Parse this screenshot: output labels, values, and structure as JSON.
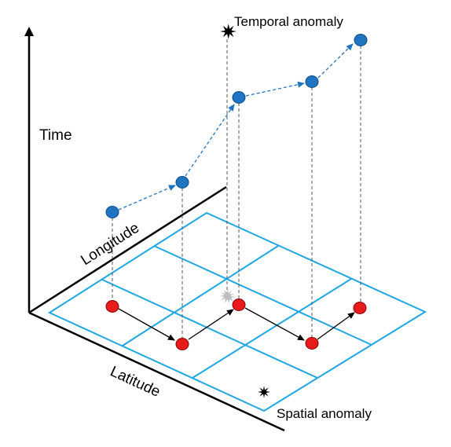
{
  "labels": {
    "time": "Time",
    "longitude": "Longitude",
    "latitude": "Latitude",
    "temporal_anomaly": "Temporal anomaly",
    "spatial_anomaly": "Spatial anomaly"
  },
  "colors": {
    "grid": "#1ea7e4",
    "spatial_point": "#e81b1b",
    "temporal_point": "#1f74c2",
    "trajectory_temporal": "#1f74c2",
    "trajectory_spatial": "#000000",
    "axis": "#000000",
    "drop_line": "#555555",
    "anomaly_marker": "#000000",
    "anomaly_marker_projected": "#bdbdbd"
  },
  "icons": {
    "temporal_anomaly": "starburst-icon",
    "spatial_anomaly": "starburst-icon",
    "projected_anomaly": "starburst-icon"
  }
}
